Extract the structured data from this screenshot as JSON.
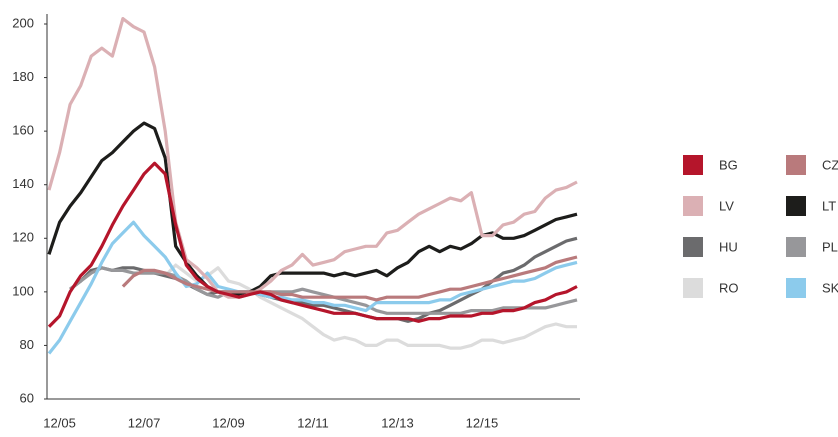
{
  "chart_data": {
    "type": "line",
    "categories": [
      null,
      "12/05",
      null,
      null,
      null,
      null,
      null,
      null,
      null,
      "12/07",
      null,
      null,
      null,
      null,
      null,
      null,
      null,
      "12/09",
      null,
      null,
      null,
      null,
      null,
      null,
      null,
      "12/11",
      null,
      null,
      null,
      null,
      null,
      null,
      null,
      "12/13",
      null,
      null,
      null,
      null,
      null,
      null,
      null,
      "12/15",
      null,
      null,
      null,
      null,
      null,
      null,
      null,
      null,
      null
    ],
    "ylim": [
      60,
      200
    ],
    "yticks": [
      60,
      80,
      100,
      120,
      140,
      160,
      180,
      200
    ],
    "series": [
      {
        "name": "BG",
        "color": "#b5152b",
        "values": [
          87,
          91,
          100,
          106,
          110,
          117,
          125,
          132,
          138,
          144,
          148,
          144,
          125,
          110,
          105,
          102,
          100,
          99,
          98,
          99,
          100,
          99,
          97,
          96,
          95,
          94,
          93,
          92,
          92,
          92,
          91,
          90,
          90,
          90,
          90,
          89,
          90,
          90,
          91,
          91,
          91,
          92,
          92,
          93,
          93,
          94,
          96,
          97,
          99,
          100,
          102
        ]
      },
      {
        "name": "CZ",
        "color": "#b97a7c",
        "values": [
          null,
          null,
          null,
          null,
          null,
          null,
          null,
          102,
          106,
          108,
          108,
          107,
          105,
          103,
          102,
          101,
          100,
          100,
          100,
          100,
          100,
          100,
          99,
          99,
          98,
          98,
          98,
          98,
          98,
          98,
          98,
          97,
          98,
          98,
          98,
          98,
          99,
          100,
          101,
          101,
          102,
          103,
          104,
          105,
          106,
          107,
          108,
          109,
          111,
          112,
          113
        ]
      },
      {
        "name": "LV",
        "color": "#dbb0b4",
        "values": [
          138,
          152,
          170,
          177,
          188,
          191,
          188,
          202,
          199,
          197,
          184,
          160,
          126,
          112,
          109,
          105,
          100,
          98,
          98,
          99,
          101,
          104,
          108,
          110,
          114,
          110,
          111,
          112,
          115,
          116,
          117,
          117,
          122,
          123,
          126,
          129,
          131,
          133,
          135,
          134,
          137,
          121,
          121,
          125,
          126,
          129,
          130,
          135,
          138,
          139,
          141
        ]
      },
      {
        "name": "LT",
        "color": "#1d1d1b",
        "values": [
          114,
          126,
          132,
          137,
          143,
          149,
          152,
          156,
          160,
          163,
          161,
          150,
          117,
          111,
          106,
          102,
          100,
          99,
          99,
          100,
          102,
          106,
          107,
          107,
          107,
          107,
          107,
          106,
          107,
          106,
          107,
          108,
          106,
          109,
          111,
          115,
          117,
          115,
          117,
          116,
          118,
          121,
          122,
          120,
          120,
          121,
          123,
          125,
          127,
          128,
          129
        ]
      },
      {
        "name": "HU",
        "color": "#6b6b6d",
        "values": [
          null,
          null,
          101,
          104,
          108,
          109,
          108,
          109,
          109,
          108,
          107,
          106,
          105,
          103,
          101,
          99,
          100,
          100,
          100,
          100,
          99,
          98,
          97,
          96,
          96,
          95,
          95,
          94,
          93,
          92,
          91,
          90,
          90,
          90,
          89,
          90,
          92,
          93,
          95,
          97,
          99,
          101,
          104,
          107,
          108,
          110,
          113,
          115,
          117,
          119,
          120
        ]
      },
      {
        "name": "PL",
        "color": "#97979a",
        "values": [
          null,
          null,
          101,
          104,
          107,
          109,
          108,
          108,
          107,
          107,
          107,
          107,
          106,
          104,
          101,
          99,
          98,
          100,
          100,
          100,
          100,
          100,
          100,
          100,
          101,
          100,
          99,
          98,
          97,
          96,
          95,
          93,
          92,
          92,
          92,
          92,
          92,
          92,
          92,
          92,
          93,
          93,
          93,
          94,
          94,
          94,
          94,
          94,
          95,
          96,
          97
        ]
      },
      {
        "name": "RO",
        "color": "#dcdcdc",
        "values": [
          null,
          null,
          null,
          null,
          null,
          null,
          null,
          null,
          null,
          null,
          null,
          106,
          110,
          107,
          104,
          106,
          109,
          104,
          103,
          101,
          98,
          96,
          94,
          92,
          90,
          87,
          84,
          82,
          83,
          82,
          80,
          80,
          82,
          82,
          80,
          80,
          80,
          80,
          79,
          79,
          80,
          82,
          82,
          81,
          82,
          83,
          85,
          87,
          88,
          87,
          87
        ]
      },
      {
        "name": "SK",
        "color": "#8ccbec",
        "values": [
          77,
          82,
          89,
          96,
          103,
          111,
          118,
          122,
          126,
          121,
          117,
          113,
          107,
          102,
          103,
          107,
          102,
          101,
          100,
          100,
          99,
          98,
          98,
          97,
          97,
          96,
          96,
          95,
          95,
          94,
          93,
          96,
          96,
          96,
          96,
          96,
          96,
          97,
          97,
          99,
          100,
          101,
          102,
          103,
          104,
          104,
          105,
          107,
          109,
          110,
          111
        ]
      }
    ]
  }
}
